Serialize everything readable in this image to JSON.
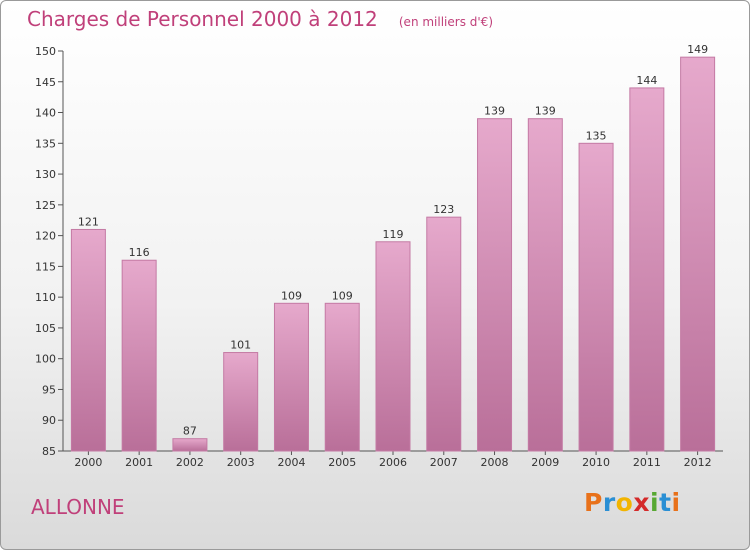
{
  "header": {
    "title": "Charges de Personnel 2000 à 2012",
    "subtitle": "(en milliers d'€)"
  },
  "footer": {
    "commune": "ALLONNE",
    "logo_letters": [
      "P",
      "r",
      "o",
      "x",
      "i",
      "t",
      "i"
    ],
    "logo_colors": [
      "#e8711a",
      "#2a8fd4",
      "#f2b400",
      "#d42a2a",
      "#57a832",
      "#2a8fd4",
      "#e8711a"
    ]
  },
  "colors": {
    "accent": "#c0407a",
    "bar_top": "#e6a9cc",
    "bar_bottom": "#b96f99",
    "bar_edge": "#c47aa4"
  },
  "chart_data": {
    "type": "bar",
    "title": "Charges de Personnel 2000 à 2012",
    "subtitle": "(en milliers d'€)",
    "categories": [
      "2000",
      "2001",
      "2002",
      "2003",
      "2004",
      "2005",
      "2006",
      "2007",
      "2008",
      "2009",
      "2010",
      "2011",
      "2012"
    ],
    "values": [
      121,
      116,
      87,
      101,
      109,
      109,
      119,
      123,
      139,
      139,
      135,
      144,
      149
    ],
    "ylim": [
      85,
      150
    ],
    "yticks": [
      85,
      90,
      95,
      100,
      105,
      110,
      115,
      120,
      125,
      130,
      135,
      140,
      145,
      150
    ],
    "xlabel": "",
    "ylabel": "",
    "grid": false,
    "data_labels": true
  }
}
